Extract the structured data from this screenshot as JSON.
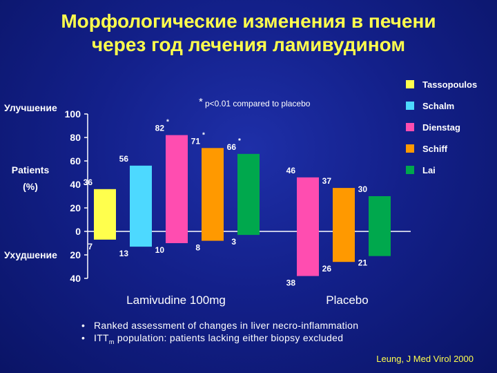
{
  "title": {
    "line1": "Морфологические изменения в печени",
    "line2": "через год лечения ламивудином"
  },
  "chart_data": {
    "type": "bar",
    "ylabel_top": "Улучшение",
    "ylabel_mid_1": "Patients",
    "ylabel_mid_2": "(%)",
    "ylabel_bottom": "Ухудшение",
    "ylim": [
      -40,
      100
    ],
    "yticks": [
      {
        "value": 100,
        "label": "100"
      },
      {
        "value": 80,
        "label": "80"
      },
      {
        "value": 60,
        "label": "60"
      },
      {
        "value": 40,
        "label": "40"
      },
      {
        "value": 20,
        "label": "20"
      },
      {
        "value": 0,
        "label": "0"
      },
      {
        "value": -20,
        "label": "20"
      },
      {
        "value": -40,
        "label": "40"
      }
    ],
    "groups": [
      "Lamivudine 100mg",
      "Placebo"
    ],
    "series": [
      {
        "name": "Tassopoulos",
        "color": "#ffff4d"
      },
      {
        "name": "Schalm",
        "color": "#4dd9ff"
      },
      {
        "name": "Dienstag",
        "color": "#ff4db0"
      },
      {
        "name": "Schiff",
        "color": "#ff9900"
      },
      {
        "name": "Lai",
        "color": "#00a84d"
      }
    ],
    "bars": [
      {
        "group": 0,
        "series": 0,
        "improve": 36,
        "improve_label": "36",
        "worsen": 7,
        "worsen_label": "7",
        "star": false
      },
      {
        "group": 0,
        "series": 1,
        "improve": 56,
        "improve_label": "56",
        "worsen": 13,
        "worsen_label": "13",
        "star": false
      },
      {
        "group": 0,
        "series": 2,
        "improve": 82,
        "improve_label": "82",
        "worsen": 10,
        "worsen_label": "10",
        "star": true
      },
      {
        "group": 0,
        "series": 3,
        "improve": 71,
        "improve_label": "71",
        "worsen": 8,
        "worsen_label": "8",
        "star": true
      },
      {
        "group": 0,
        "series": 4,
        "improve": 66,
        "improve_label": "66",
        "worsen": 3,
        "worsen_label": "3",
        "star": true
      },
      {
        "group": 1,
        "series": 2,
        "improve": 46,
        "improve_label": "46",
        "worsen": 38,
        "worsen_label": "38",
        "star": false
      },
      {
        "group": 1,
        "series": 3,
        "improve": 37,
        "improve_label": "37",
        "worsen": 26,
        "worsen_label": "26",
        "star": false
      },
      {
        "group": 1,
        "series": 4,
        "improve": 30,
        "improve_label": "30",
        "worsen": 21,
        "worsen_label": "21",
        "star": false
      }
    ],
    "star_symbol": "*",
    "annotation_star": "*",
    "annotation": "p<0.01 compared to placebo",
    "legend_position": "right",
    "grid": false
  },
  "bullets": [
    {
      "symbol": "•",
      "text": "Ranked assessment of changes in liver necro-inflammation"
    },
    {
      "symbol": "•",
      "text_before": "ITT",
      "sub": "m",
      "text_after": " population: patients lacking either biopsy excluded"
    }
  ],
  "citation": "Leung, J Med Virol 2000"
}
